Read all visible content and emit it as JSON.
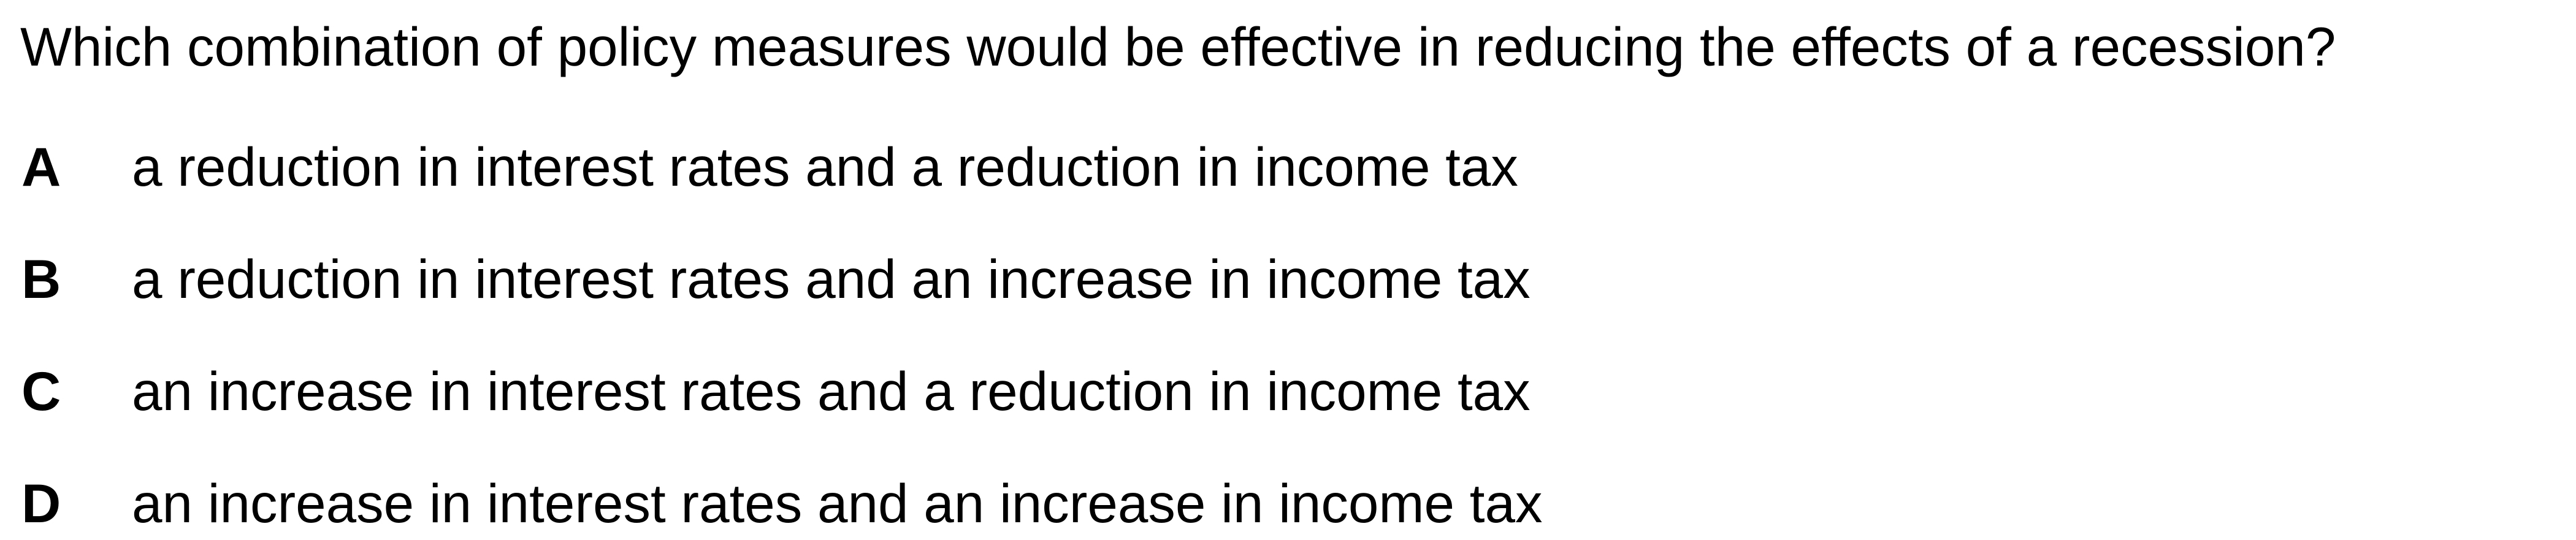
{
  "question": {
    "text": "Which combination of policy measures would be effective in reducing the effects of a recession?"
  },
  "options": [
    {
      "letter": "A",
      "text": "a reduction in interest rates and a reduction in income tax"
    },
    {
      "letter": "B",
      "text": "a reduction in interest rates and an increase in income tax"
    },
    {
      "letter": "C",
      "text": "an increase in interest rates and a reduction in income tax"
    },
    {
      "letter": "D",
      "text": "an increase in interest rates and an increase in income tax"
    }
  ]
}
